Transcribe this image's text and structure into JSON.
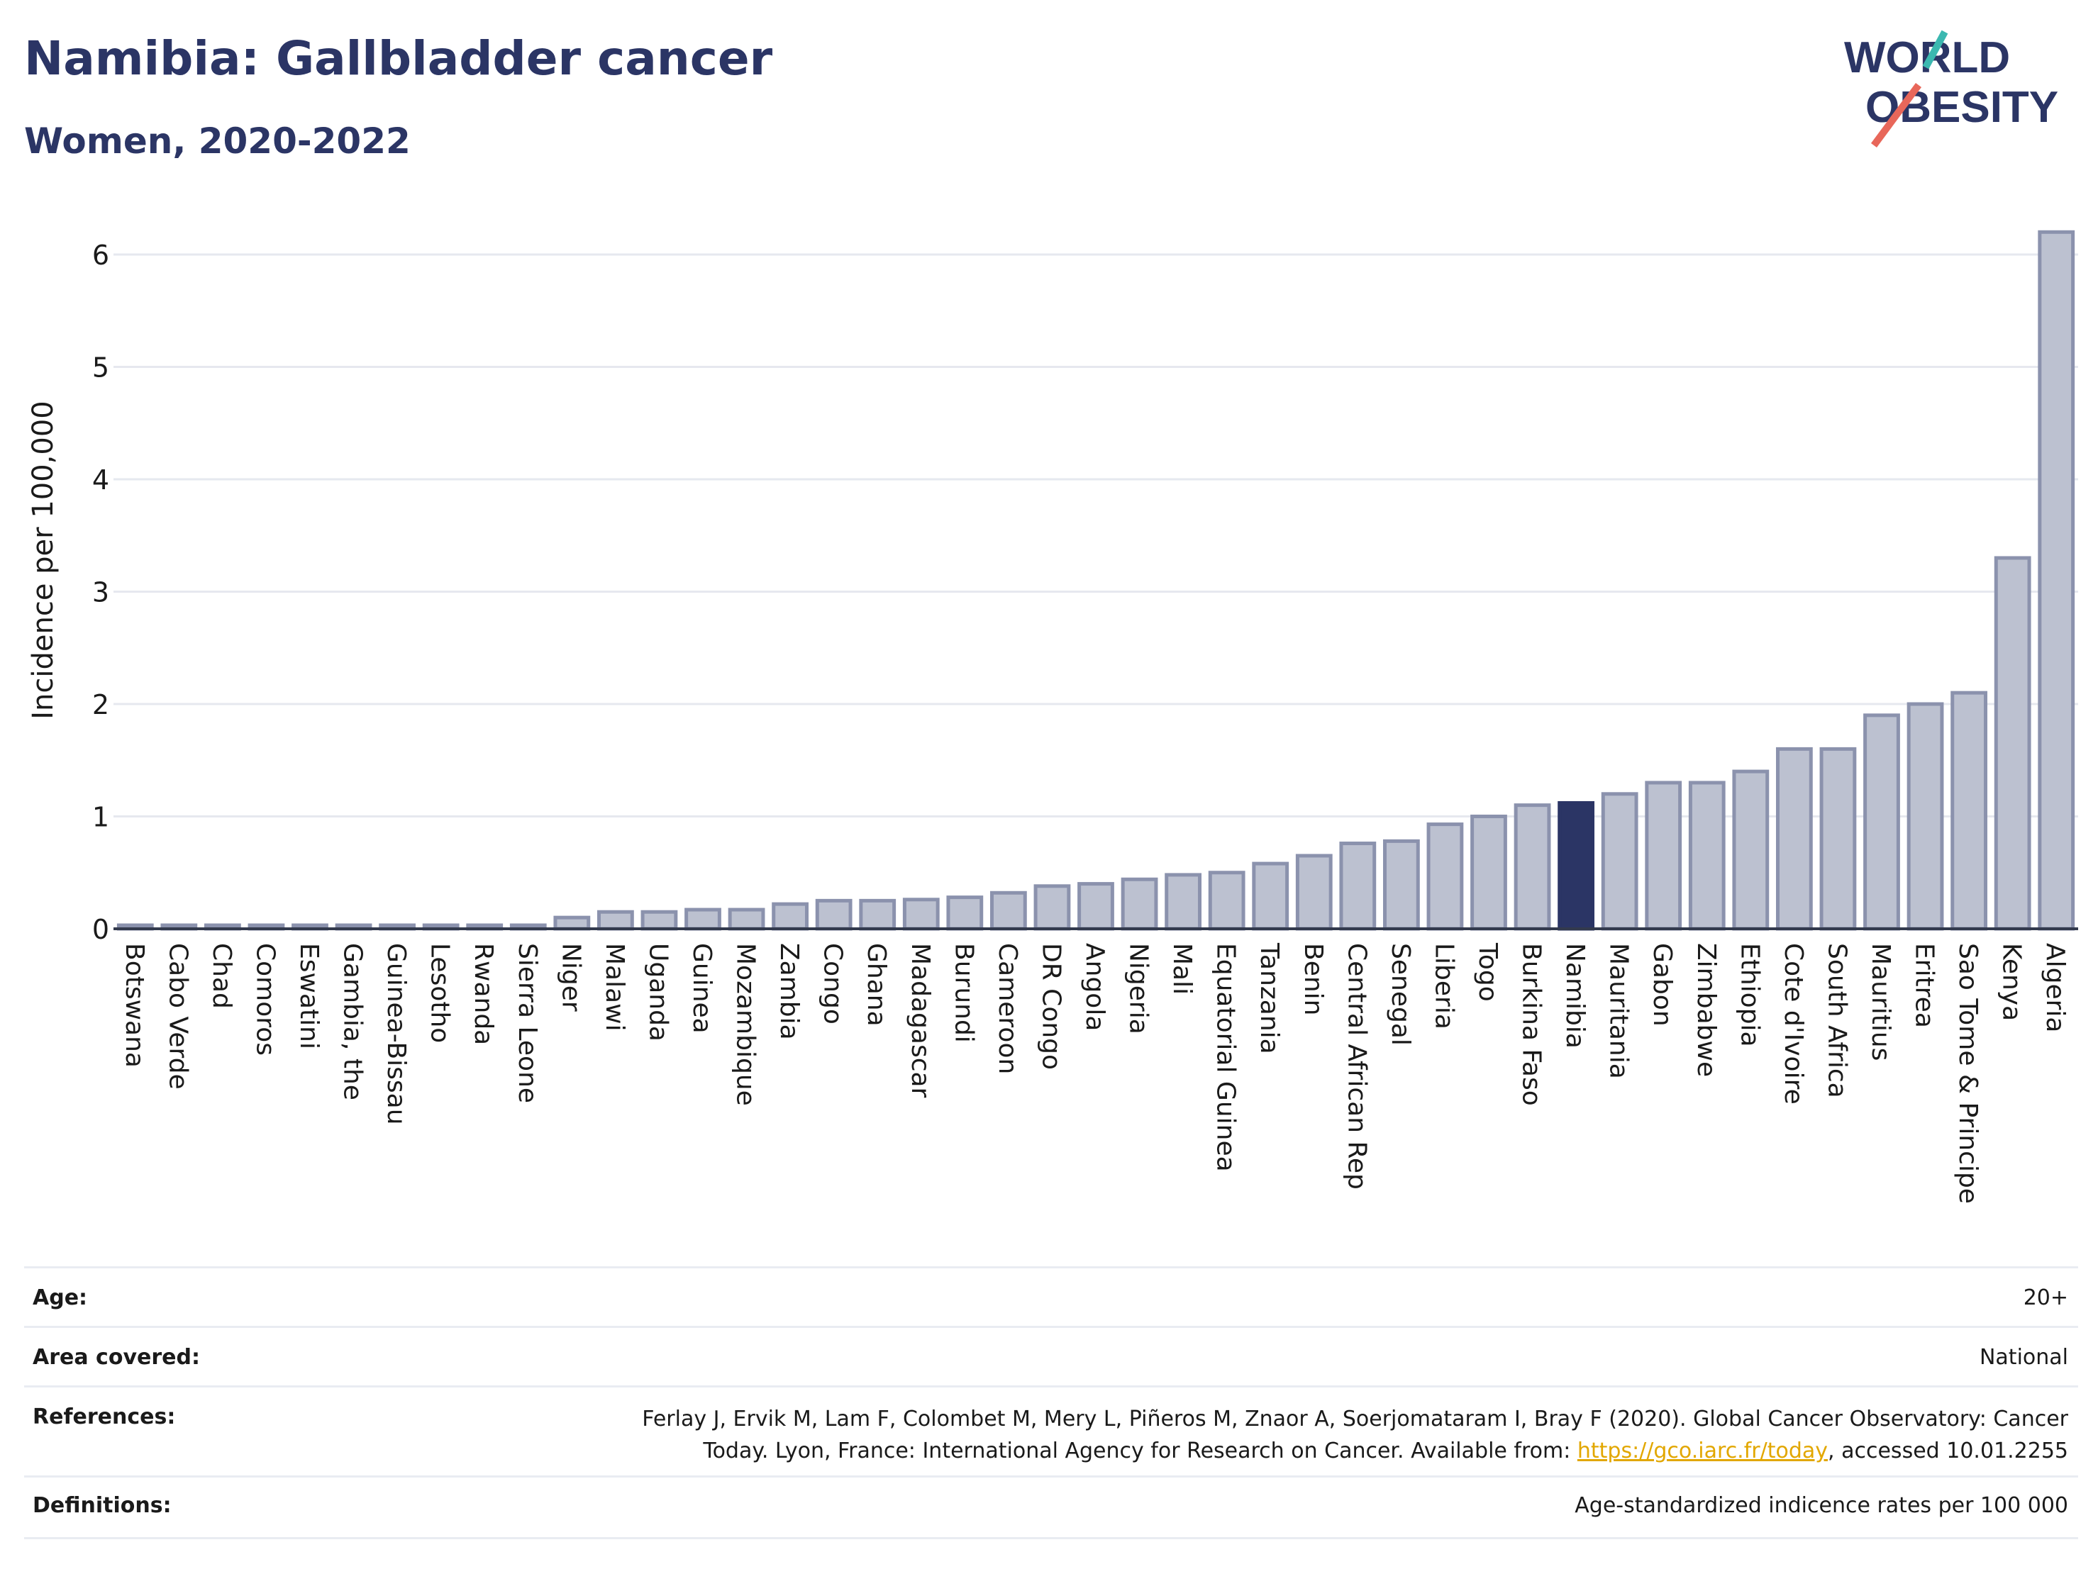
{
  "title": "Namibia: Gallbladder cancer",
  "subtitle": "Women, 2020-2022",
  "logo": {
    "line1": "WORLD",
    "line2": "OBESITY",
    "text_color": "#2b3565",
    "slash_teal": "#3bb8b0",
    "slash_red": "#e8675a"
  },
  "colors": {
    "bar": "#bcc1d0",
    "bar_edge": "#8b92ad",
    "highlight": "#2b3565",
    "axis": "#333a4d",
    "grid": "#e6e8ef"
  },
  "chart_data": {
    "type": "bar",
    "ylabel": "Incidence per 100,000",
    "ylim": [
      0,
      6.2
    ],
    "yticks": [
      "0",
      "1",
      "2",
      "3",
      "4",
      "5",
      "6"
    ],
    "highlight": "Namibia",
    "grid": true,
    "categories": [
      "Botswana",
      "Cabo Verde",
      "Chad",
      "Comoros",
      "Eswatini",
      "Gambia, the",
      "Guinea-Bissau",
      "Lesotho",
      "Rwanda",
      "Sierra Leone",
      "Niger",
      "Malawi",
      "Uganda",
      "Guinea",
      "Mozambique",
      "Zambia",
      "Congo",
      "Ghana",
      "Madagascar",
      "Burundi",
      "Cameroon",
      "DR Congo",
      "Angola",
      "Nigeria",
      "Mali",
      "Equatorial Guinea",
      "Tanzania",
      "Benin",
      "Central African Rep",
      "Senegal",
      "Liberia",
      "Togo",
      "Burkina Faso",
      "Namibia",
      "Mauritania",
      "Gabon",
      "Zimbabwe",
      "Ethiopia",
      "Cote d'Ivoire",
      "South Africa",
      "Mauritius",
      "Eritrea",
      "Sao Tome & Principe",
      "Kenya",
      "Algeria"
    ],
    "values": [
      0.02,
      0.02,
      0.02,
      0.02,
      0.02,
      0.02,
      0.02,
      0.02,
      0.02,
      0.02,
      0.1,
      0.15,
      0.15,
      0.17,
      0.17,
      0.22,
      0.25,
      0.25,
      0.26,
      0.28,
      0.32,
      0.38,
      0.4,
      0.44,
      0.48,
      0.5,
      0.58,
      0.65,
      0.76,
      0.78,
      0.93,
      1.0,
      1.1,
      1.12,
      1.2,
      1.3,
      1.3,
      1.4,
      1.6,
      1.6,
      1.9,
      2.0,
      2.1,
      3.3,
      6.2
    ]
  },
  "info": {
    "age_label": "Age:",
    "age_value": "20+",
    "area_label": "Area covered:",
    "area_value": "National",
    "ref_label": "References:",
    "ref_text_1": "Ferlay J, Ervik M, Lam F, Colombet M, Mery L, Piñeros M, Znaor A, Soerjomataram I, Bray F (2020). Global Cancer Observatory: Cancer",
    "ref_text_2": "Today. Lyon, France: International Agency for Research on Cancer. Available from: ",
    "ref_link": "https://gco.iarc.fr/today",
    "ref_text_3": ", accessed 10.01.2255",
    "def_label": "Definitions:",
    "def_value": "Age-standardized indicence rates per 100 000"
  }
}
